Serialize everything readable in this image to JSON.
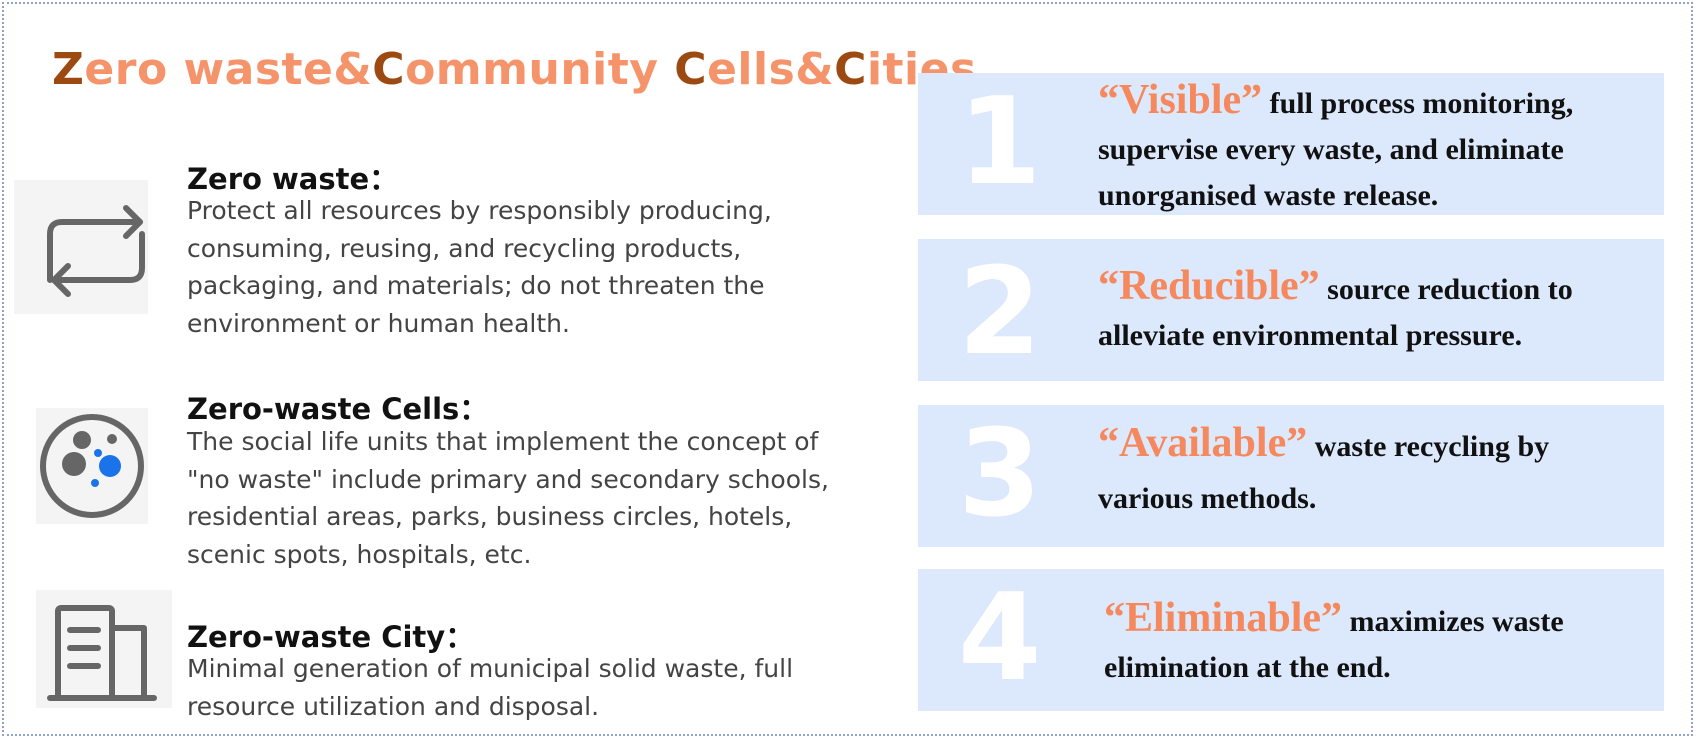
{
  "title": {
    "parts": [
      {
        "text": "Z",
        "dark": true
      },
      {
        "text": "ero waste&",
        "dark": false
      },
      {
        "text": "C",
        "dark": true
      },
      {
        "text": "ommunity ",
        "dark": false
      },
      {
        "text": "C",
        "dark": true
      },
      {
        "text": "ells&",
        "dark": false
      },
      {
        "text": "C",
        "dark": true
      },
      {
        "text": "ities",
        "dark": false
      }
    ]
  },
  "items": [
    {
      "heading": "Zero waste：",
      "description": "Protect all resources by responsibly producing, consuming, reusing, and recycling products, packaging, and materials; do not threaten the environment or human health.",
      "icon": "recycle-arrows-icon"
    },
    {
      "heading": "Zero-waste Cells：",
      "description": "The social life units that implement the concept of \"no waste\" include primary and secondary schools, residential areas, parks, business circles, hotels, scenic spots, hospitals, etc.",
      "icon": "cell-circle-icon"
    },
    {
      "heading": "Zero-waste City：",
      "description": "Minimal generation of municipal solid waste, full resource utilization and disposal.",
      "icon": "city-building-icon"
    }
  ],
  "cards": [
    {
      "number": "1",
      "keyword": "“Visible”",
      "text": " full process monitoring, supervise every waste, and eliminate unorganised waste release."
    },
    {
      "number": "2",
      "keyword": "“Reducible”",
      "text": " source reduction to alleviate environmental pressure."
    },
    {
      "number": "3",
      "keyword": "“Available”",
      "text": " waste recycling by various methods."
    },
    {
      "number": "4",
      "keyword": "“Eliminable”",
      "text": " maximizes waste elimination at the end."
    }
  ],
  "colors": {
    "title_light": "#f5946a",
    "title_dark": "#9c4a12",
    "keyword": "#f5885c",
    "card_bg": "#dce8fb",
    "icon_gray": "#666666",
    "icon_blue": "#1a73e8"
  }
}
